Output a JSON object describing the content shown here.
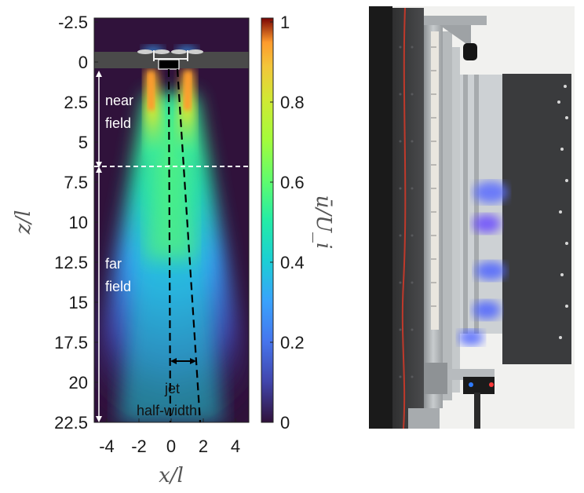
{
  "left_plot": {
    "y_axis": {
      "label": "z/l",
      "ticks": [
        "-2.5",
        "0",
        "2.5",
        "5",
        "7.5",
        "10",
        "12.5",
        "15",
        "17.5",
        "20",
        "22.5"
      ]
    },
    "x_axis": {
      "label": "x/l",
      "ticks": [
        "-4",
        "-2",
        "0",
        "2",
        "4"
      ]
    },
    "colorbar": {
      "label": "ū/U_i",
      "ticks": [
        "1",
        "0.8",
        "0.6",
        "0.4",
        "0.2",
        "0"
      ]
    },
    "annotations": {
      "near_field": [
        "near",
        "field"
      ],
      "far_field": [
        "far",
        "field"
      ],
      "jet_half_width": [
        "jet",
        "half-width"
      ]
    },
    "colormap": "jet"
  },
  "right_photo": {
    "description_hidden": ""
  },
  "colors": {
    "background": "#ffffff",
    "jet_dark": "#30123b",
    "body_gray": "#4a4a4a"
  }
}
